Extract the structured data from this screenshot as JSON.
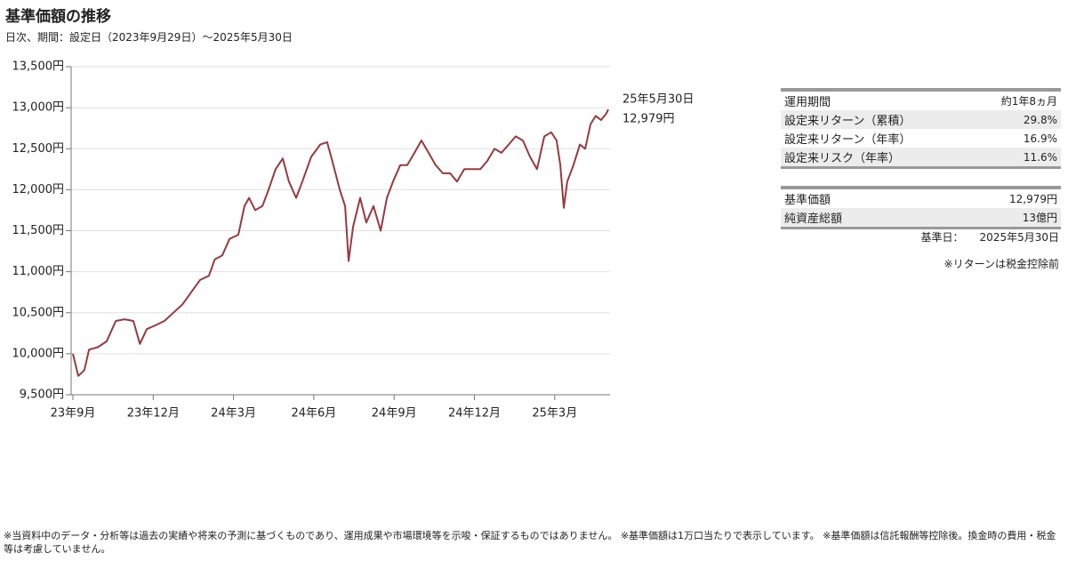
{
  "chart_data": {
    "type": "line",
    "title": "基準価額の推移",
    "subtitle": "日次、期間：設定日（2023年9月29日）～2025年5月30日",
    "x": [
      0,
      0.2,
      0.43,
      0.6,
      0.93,
      1.26,
      1.6,
      1.93,
      2.26,
      2.5,
      2.76,
      3.1,
      3.42,
      3.75,
      4.09,
      4.42,
      4.75,
      5.08,
      5.3,
      5.58,
      5.85,
      6.18,
      6.41,
      6.58,
      6.81,
      7.08,
      7.31,
      7.57,
      7.84,
      8.07,
      8.34,
      8.57,
      8.9,
      9.24,
      9.5,
      9.73,
      9.97,
      10.17,
      10.3,
      10.47,
      10.73,
      10.96,
      11.23,
      11.5,
      11.73,
      11.96,
      12.23,
      12.49,
      12.76,
      13.02,
      13.29,
      13.55,
      13.82,
      14.09,
      14.35,
      14.62,
      14.95,
      15.22,
      15.48,
      15.75,
      16.01,
      16.28,
      16.54,
      16.81,
      17.08,
      17.34,
      17.61,
      17.87,
      18.07,
      18.21,
      18.34,
      18.47,
      18.7,
      18.94,
      19.14,
      19.34,
      19.53,
      19.73,
      19.93,
      20
    ],
    "series": [
      {
        "name": "基準価額",
        "color": "#963a3f",
        "values": [
          10000,
          9730,
          9800,
          10050,
          10080,
          10150,
          10400,
          10420,
          10400,
          10120,
          10300,
          10350,
          10400,
          10500,
          10600,
          10750,
          10900,
          10950,
          11150,
          11200,
          11400,
          11450,
          11800,
          11900,
          11750,
          11800,
          12000,
          12250,
          12380,
          12100,
          11900,
          12100,
          12400,
          12550,
          12580,
          12300,
          12000,
          11800,
          11130,
          11550,
          11900,
          11600,
          11800,
          11500,
          11900,
          12100,
          12300,
          12300,
          12450,
          12600,
          12450,
          12300,
          12200,
          12200,
          12100,
          12250,
          12250,
          12250,
          12350,
          12500,
          12450,
          12550,
          12650,
          12600,
          12400,
          12250,
          12650,
          12700,
          12600,
          12300,
          11780,
          12100,
          12300,
          12550,
          12500,
          12800,
          12900,
          12850,
          12930,
          12979
        ]
      }
    ],
    "xlim": [
      0,
      20
    ],
    "xticks": [
      {
        "value": 0,
        "label": "23年9月"
      },
      {
        "value": 3,
        "label": "23年12月"
      },
      {
        "value": 6,
        "label": "24年3月"
      },
      {
        "value": 9,
        "label": "24年6月"
      },
      {
        "value": 12,
        "label": "24年9月"
      },
      {
        "value": 15,
        "label": "24年12月"
      },
      {
        "value": 18,
        "label": "25年3月"
      }
    ],
    "ylim": [
      9500,
      13500
    ],
    "yticks": [
      {
        "value": 9500,
        "label": "9,500円"
      },
      {
        "value": 10000,
        "label": "10,000円"
      },
      {
        "value": 10500,
        "label": "10,500円"
      },
      {
        "value": 11000,
        "label": "11,000円"
      },
      {
        "value": 11500,
        "label": "11,500円"
      },
      {
        "value": 12000,
        "label": "12,000円"
      },
      {
        "value": 12500,
        "label": "12,500円"
      },
      {
        "value": 13000,
        "label": "13,000円"
      },
      {
        "value": 13500,
        "label": "13,500円"
      }
    ],
    "grid": true,
    "annotation": {
      "date": "25年5月30日",
      "value_label": "12,979円"
    }
  },
  "stats": [
    [
      "運用期間",
      "約1年8ヵ月"
    ],
    [
      "設定来リターン（累積）",
      "29.8%"
    ],
    [
      "設定来リターン（年率）",
      "16.9%"
    ],
    [
      "設定来リスク（年率）",
      "11.6%"
    ]
  ],
  "nav": [
    [
      "基準価額",
      "12,979円"
    ],
    [
      "純資産総額",
      "13億円"
    ]
  ],
  "base_date_label": "基準日：",
  "base_date": "2025年5月30日",
  "note": "※リターンは税金控除前",
  "footer": "※当資料中のデータ・分析等は過去の実績や将来の予測に基づくものであり、運用成果や市場環境等を示唆・保証するものではありません。 ※基準価額は1万口当たりで表示しています。 ※基準価額は信託報酬等控除後。換金時の費用・税金等は考慮していません。"
}
